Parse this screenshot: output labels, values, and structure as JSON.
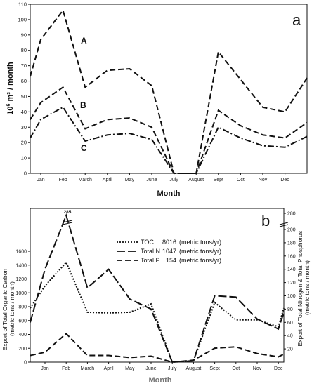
{
  "chart_data": [
    {
      "type": "line",
      "panel_label": "a",
      "xlabel": "Month",
      "ylabel_base": "10",
      "ylabel_sup": "6",
      "ylabel_rest": " m³ / month",
      "categories": [
        "Jan",
        "Feb",
        "March",
        "April",
        "May",
        "June",
        "July",
        "August",
        "Sept",
        "Oct",
        "Nov",
        "Dec"
      ],
      "ylim": [
        0,
        110
      ],
      "yticks": [
        0,
        10,
        20,
        30,
        40,
        50,
        60,
        70,
        80,
        90,
        100,
        110
      ],
      "series": [
        {
          "name": "A",
          "style": "dashed",
          "start": 63,
          "values": [
            87,
            106,
            56,
            67,
            68,
            57,
            0,
            0,
            79,
            61,
            43,
            40
          ],
          "end": 62
        },
        {
          "name": "B",
          "style": "dashed",
          "start": 35,
          "values": [
            46,
            56,
            29,
            35,
            36,
            30,
            0,
            0,
            41,
            31,
            25,
            23
          ],
          "end": 33
        },
        {
          "name": "C",
          "style": "dashdot",
          "start": 23,
          "values": [
            35,
            43,
            21,
            25,
            26,
            22,
            0,
            0,
            30,
            23,
            18,
            17
          ],
          "end": 24
        }
      ]
    },
    {
      "type": "line",
      "panel_label": "b",
      "xlabel": "Month",
      "ylabel_left": [
        "Export of Total Organic Carbon",
        "(metric tons / month)"
      ],
      "ylabel_right": [
        "Export of Total Nitrogen & Total Phosphorus",
        "(metric tons / month)"
      ],
      "categories": [
        "Jan",
        "Feb",
        "March",
        "April",
        "May",
        "June",
        "July",
        "August",
        "Sept",
        "Oct",
        "Nov",
        "Dec"
      ],
      "ylim_left": [
        0,
        1600
      ],
      "yticks_left": [
        0,
        200,
        400,
        600,
        800,
        1000,
        1200,
        1400,
        1600
      ],
      "ylim_right": [
        0,
        280
      ],
      "yticks_right": [
        20,
        40,
        60,
        80,
        100,
        120,
        140,
        160,
        180,
        200,
        280
      ],
      "axis_break_label": "285",
      "legend": [
        {
          "label": "TOC",
          "value": "8016",
          "unit": "(metric tons/yr)",
          "style": "dotted"
        },
        {
          "label": "Total N",
          "value": "1047",
          "unit": "(metric tons/yr)",
          "style": "longdash"
        },
        {
          "label": "Total P",
          "value": "154",
          "unit": "(metric tons/yr)",
          "style": "dashed"
        }
      ],
      "series": [
        {
          "name": "TOC",
          "axis": "left",
          "style": "dotted",
          "start": 780,
          "values": [
            1100,
            1440,
            720,
            710,
            720,
            840,
            0,
            20,
            860,
            610,
            610,
            510
          ],
          "end": 780
        },
        {
          "name": "Total N",
          "axis": "right",
          "style": "longdash",
          "start": 60,
          "values": [
            140,
            205,
            112,
            140,
            95,
            80,
            0,
            2,
            100,
            98,
            65,
            50
          ],
          "end": 75
        },
        {
          "name": "Total P",
          "axis": "right",
          "style": "dashed",
          "start": 10,
          "values": [
            15,
            43,
            10,
            10,
            7,
            9,
            0,
            3,
            21,
            23,
            13,
            8
          ],
          "end": 12
        }
      ]
    }
  ]
}
